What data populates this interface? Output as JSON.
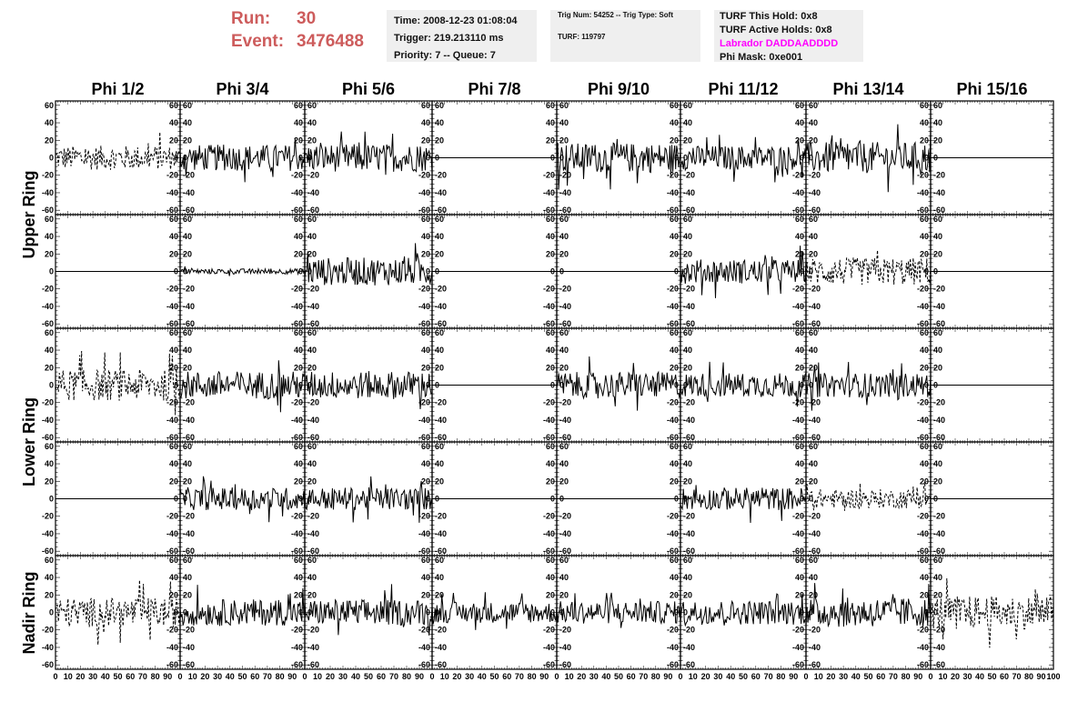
{
  "header": {
    "run_label": "Run:",
    "run_value": "30",
    "event_label": "Event:",
    "event_value": "3476488",
    "time": "Time: 2008-12-23 01:08:04",
    "trigger": "Trigger: 219.213110 ms",
    "priority": "Priority: 7 -- Queue: 7",
    "trig_num": "Trig Num: 54252 -- Trig Type: Soft",
    "turf": "TURF: 119797",
    "turf_hold": "TURF This Hold: 0x8",
    "turf_active": "TURF Active Holds: 0x8",
    "labrador": "Labrador DADDAADDDD",
    "phi_mask": "Phi Mask: 0xe001"
  },
  "colors": {
    "run_text": "#cd5c5c",
    "labrador_text": "#ff00ff",
    "pane_bg": "#efefef"
  },
  "chart_data": {
    "type": "line",
    "columns": [
      "Phi 1/2",
      "Phi 3/4",
      "Phi 5/6",
      "Phi 7/8",
      "Phi 9/10",
      "Phi 11/12",
      "Phi 13/14",
      "Phi 15/16"
    ],
    "row_groups": [
      "Upper Ring",
      "Lower Ring",
      "Nadir Ring"
    ],
    "rows": 5,
    "ylim": [
      -65,
      65
    ],
    "y_ticks": [
      -60,
      -40,
      -20,
      0,
      20,
      40,
      60
    ],
    "xlim": [
      0,
      100
    ],
    "x_ticks": [
      0,
      10,
      20,
      30,
      40,
      50,
      60,
      70,
      80,
      90,
      100
    ],
    "grid": false,
    "panels": [
      [
        "dashed",
        "solid",
        "solid",
        "flat",
        "solid",
        "solid",
        "solid",
        "flat"
      ],
      [
        "flat",
        "small",
        "solid",
        "flat",
        "flat",
        "solid",
        "dashed",
        "flat"
      ],
      [
        "dashed",
        "solid",
        "solid",
        "flat",
        "solid",
        "solid",
        "solid",
        "flat"
      ],
      [
        "flat",
        "solid",
        "solid",
        "flat",
        "flat",
        "solid",
        "dashed",
        "flat"
      ],
      [
        "dashed",
        "solid",
        "solid",
        "solid",
        "solid",
        "solid",
        "solid",
        "dashed"
      ]
    ],
    "amplitudes": [
      [
        14,
        15,
        16,
        0,
        17,
        14,
        18,
        0
      ],
      [
        0,
        3,
        16,
        0,
        0,
        14,
        16,
        0
      ],
      [
        18,
        16,
        16,
        0,
        15,
        14,
        14,
        0
      ],
      [
        0,
        13,
        13,
        0,
        0,
        13,
        11,
        0
      ],
      [
        17,
        15,
        15,
        12,
        13,
        14,
        17,
        19
      ]
    ]
  }
}
